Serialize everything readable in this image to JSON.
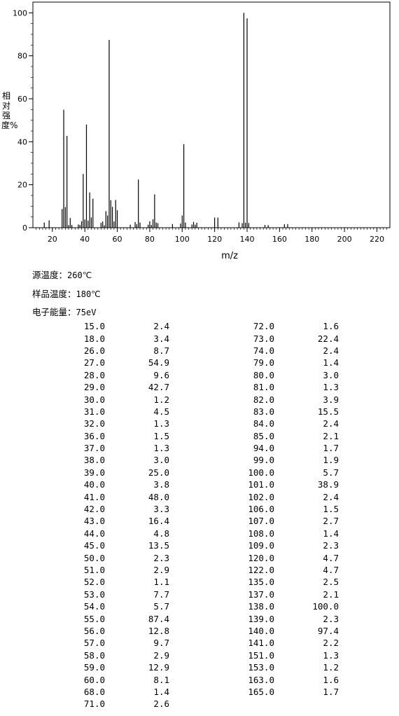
{
  "chart_data": {
    "type": "bar",
    "title": "",
    "xlabel": "m/z",
    "ylabel": "相对强度%",
    "xlim": [
      8,
      228
    ],
    "ylim": [
      0,
      105
    ],
    "xticks": [
      20,
      40,
      60,
      80,
      100,
      120,
      140,
      160,
      180,
      200,
      220
    ],
    "yticks": [
      0,
      20,
      40,
      60,
      80,
      100
    ],
    "grid": false,
    "peaks": [
      [
        15.0,
        2.4
      ],
      [
        18.0,
        3.4
      ],
      [
        26.0,
        8.7
      ],
      [
        27.0,
        54.9
      ],
      [
        28.0,
        9.6
      ],
      [
        29.0,
        42.7
      ],
      [
        30.0,
        1.2
      ],
      [
        31.0,
        4.5
      ],
      [
        32.0,
        1.3
      ],
      [
        36.0,
        1.5
      ],
      [
        37.0,
        1.3
      ],
      [
        38.0,
        3.0
      ],
      [
        39.0,
        25.0
      ],
      [
        40.0,
        3.8
      ],
      [
        41.0,
        48.0
      ],
      [
        42.0,
        3.3
      ],
      [
        43.0,
        16.4
      ],
      [
        44.0,
        4.8
      ],
      [
        45.0,
        13.5
      ],
      [
        50.0,
        2.3
      ],
      [
        51.0,
        2.9
      ],
      [
        52.0,
        1.1
      ],
      [
        53.0,
        7.7
      ],
      [
        54.0,
        5.7
      ],
      [
        55.0,
        87.4
      ],
      [
        56.0,
        12.8
      ],
      [
        57.0,
        9.7
      ],
      [
        58.0,
        2.9
      ],
      [
        59.0,
        12.9
      ],
      [
        60.0,
        8.1
      ],
      [
        68.0,
        1.4
      ],
      [
        71.0,
        2.6
      ],
      [
        72.0,
        1.6
      ],
      [
        73.0,
        22.4
      ],
      [
        74.0,
        2.4
      ],
      [
        79.0,
        1.4
      ],
      [
        80.0,
        3.0
      ],
      [
        81.0,
        1.3
      ],
      [
        82.0,
        3.9
      ],
      [
        83.0,
        15.5
      ],
      [
        84.0,
        2.4
      ],
      [
        85.0,
        2.1
      ],
      [
        94.0,
        1.7
      ],
      [
        99.0,
        1.9
      ],
      [
        100.0,
        5.7
      ],
      [
        101.0,
        38.9
      ],
      [
        102.0,
        2.4
      ],
      [
        106.0,
        1.5
      ],
      [
        107.0,
        2.7
      ],
      [
        108.0,
        1.4
      ],
      [
        109.0,
        2.3
      ],
      [
        120.0,
        4.7
      ],
      [
        122.0,
        4.7
      ],
      [
        135.0,
        2.5
      ],
      [
        137.0,
        2.1
      ],
      [
        138.0,
        100.0
      ],
      [
        139.0,
        2.3
      ],
      [
        140.0,
        97.4
      ],
      [
        141.0,
        2.2
      ],
      [
        151.0,
        1.3
      ],
      [
        153.0,
        1.2
      ],
      [
        163.0,
        1.6
      ],
      [
        165.0,
        1.7
      ]
    ]
  },
  "conditions": [
    {
      "label": "源温度：",
      "value": "260℃"
    },
    {
      "label": "样品温度：",
      "value": "180℃"
    },
    {
      "label": "电子能量：",
      "value": "75eV"
    }
  ],
  "table_left": [
    [
      "15.0",
      "2.4"
    ],
    [
      "18.0",
      "3.4"
    ],
    [
      "26.0",
      "8.7"
    ],
    [
      "27.0",
      "54.9"
    ],
    [
      "28.0",
      "9.6"
    ],
    [
      "29.0",
      "42.7"
    ],
    [
      "30.0",
      "1.2"
    ],
    [
      "31.0",
      "4.5"
    ],
    [
      "32.0",
      "1.3"
    ],
    [
      "36.0",
      "1.5"
    ],
    [
      "37.0",
      "1.3"
    ],
    [
      "38.0",
      "3.0"
    ],
    [
      "39.0",
      "25.0"
    ],
    [
      "40.0",
      "3.8"
    ],
    [
      "41.0",
      "48.0"
    ],
    [
      "42.0",
      "3.3"
    ],
    [
      "43.0",
      "16.4"
    ],
    [
      "44.0",
      "4.8"
    ],
    [
      "45.0",
      "13.5"
    ],
    [
      "50.0",
      "2.3"
    ],
    [
      "51.0",
      "2.9"
    ],
    [
      "52.0",
      "1.1"
    ],
    [
      "53.0",
      "7.7"
    ],
    [
      "54.0",
      "5.7"
    ],
    [
      "55.0",
      "87.4"
    ],
    [
      "56.0",
      "12.8"
    ],
    [
      "57.0",
      "9.7"
    ],
    [
      "58.0",
      "2.9"
    ],
    [
      "59.0",
      "12.9"
    ],
    [
      "60.0",
      "8.1"
    ],
    [
      "68.0",
      "1.4"
    ],
    [
      "71.0",
      "2.6"
    ]
  ],
  "table_right": [
    [
      "72.0",
      "1.6"
    ],
    [
      "73.0",
      "22.4"
    ],
    [
      "74.0",
      "2.4"
    ],
    [
      "79.0",
      "1.4"
    ],
    [
      "80.0",
      "3.0"
    ],
    [
      "81.0",
      "1.3"
    ],
    [
      "82.0",
      "3.9"
    ],
    [
      "83.0",
      "15.5"
    ],
    [
      "84.0",
      "2.4"
    ],
    [
      "85.0",
      "2.1"
    ],
    [
      "94.0",
      "1.7"
    ],
    [
      "99.0",
      "1.9"
    ],
    [
      "100.0",
      "5.7"
    ],
    [
      "101.0",
      "38.9"
    ],
    [
      "102.0",
      "2.4"
    ],
    [
      "106.0",
      "1.5"
    ],
    [
      "107.0",
      "2.7"
    ],
    [
      "108.0",
      "1.4"
    ],
    [
      "109.0",
      "2.3"
    ],
    [
      "120.0",
      "4.7"
    ],
    [
      "122.0",
      "4.7"
    ],
    [
      "135.0",
      "2.5"
    ],
    [
      "137.0",
      "2.1"
    ],
    [
      "138.0",
      "100.0"
    ],
    [
      "139.0",
      "2.3"
    ],
    [
      "140.0",
      "97.4"
    ],
    [
      "141.0",
      "2.2"
    ],
    [
      "151.0",
      "1.3"
    ],
    [
      "153.0",
      "1.2"
    ],
    [
      "163.0",
      "1.6"
    ],
    [
      "165.0",
      "1.7"
    ]
  ]
}
